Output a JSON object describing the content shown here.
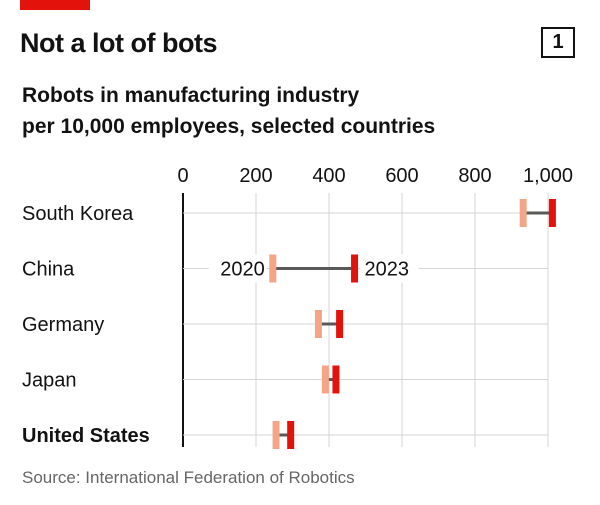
{
  "header": {
    "title": "Not a lot of bots",
    "chart_number": "1",
    "subtitle_line1": "Robots in manufacturing industry",
    "subtitle_line2": "per 10,000 employees, selected countries"
  },
  "footer": {
    "source": "Source: International Federation of Robotics"
  },
  "colors": {
    "brand_red": "#e3120b",
    "series_2020": "#f4a587",
    "series_2023": "#e3120b",
    "connector": "#595959",
    "gridline": "#d6d6d6",
    "axis": "#121212"
  },
  "chart_data": {
    "type": "dumbbell",
    "categories": [
      "South Korea",
      "China",
      "Germany",
      "Japan",
      "United States"
    ],
    "highlighted_category": "United States",
    "series": [
      {
        "name": "2020",
        "values": [
          932,
          246,
          371,
          390,
          255
        ]
      },
      {
        "name": "2023",
        "values": [
          1012,
          470,
          429,
          419,
          295
        ]
      }
    ],
    "annotations": [
      {
        "category": "China",
        "series": "2020",
        "text": "2020"
      },
      {
        "category": "China",
        "series": "2023",
        "text": "2023"
      }
    ],
    "xlim": [
      0,
      1000
    ],
    "x_ticks": [
      0,
      200,
      400,
      600,
      800,
      1000
    ],
    "x_tick_labels": [
      "0",
      "200",
      "400",
      "600",
      "800",
      "1,000"
    ],
    "axis_position": "top",
    "grid": "vertical"
  }
}
